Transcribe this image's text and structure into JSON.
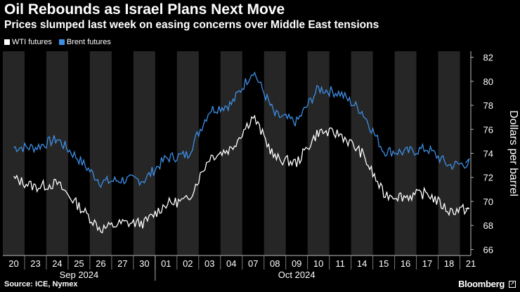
{
  "header": {
    "title": "Oil Rebounds as Israel Plans Next Move",
    "subtitle": "Prices slumped last week on easing concerns over Middle East tensions"
  },
  "footer": {
    "source": "Source: ICE, Nymex",
    "brand": "Bloomberg"
  },
  "colors": {
    "wti": "#ffffff",
    "brent": "#3d8fe6",
    "band": "#262626",
    "background": "#000000"
  },
  "icons": [
    "expand-icon"
  ],
  "chart_data": {
    "type": "line",
    "ylabel": "Dollars per barrel",
    "ylim": [
      65.5,
      82.5
    ],
    "yticks": [
      66,
      68,
      70,
      72,
      74,
      76,
      78,
      80,
      82
    ],
    "grid": false,
    "legend_position": "top-left",
    "categories": [
      "20",
      "23",
      "24",
      "25",
      "26",
      "27",
      "30",
      "01",
      "02",
      "03",
      "04",
      "07",
      "08",
      "09",
      "10",
      "11",
      "14",
      "15",
      "16",
      "17",
      "18",
      "21"
    ],
    "month_labels": [
      {
        "label": "Sep 2024",
        "at": "25"
      },
      {
        "label": "Oct 2024",
        "at": "09"
      }
    ],
    "series": [
      {
        "name": "WTI futures",
        "values": [
          71.9,
          71.2,
          71.5,
          69.6,
          67.7,
          68.2,
          68.2,
          69.8,
          70.1,
          73.7,
          74.4,
          77.1,
          73.6,
          73.2,
          75.8,
          75.6,
          74.0,
          70.6,
          70.4,
          70.7,
          69.2,
          69.4
        ]
      },
      {
        "name": "Brent futures",
        "values": [
          74.5,
          74.5,
          75.2,
          73.5,
          71.6,
          71.8,
          71.8,
          73.6,
          73.9,
          77.6,
          78.1,
          80.9,
          77.2,
          76.6,
          79.4,
          79.0,
          77.5,
          74.2,
          74.1,
          74.4,
          73.0,
          73.2
        ]
      }
    ]
  }
}
